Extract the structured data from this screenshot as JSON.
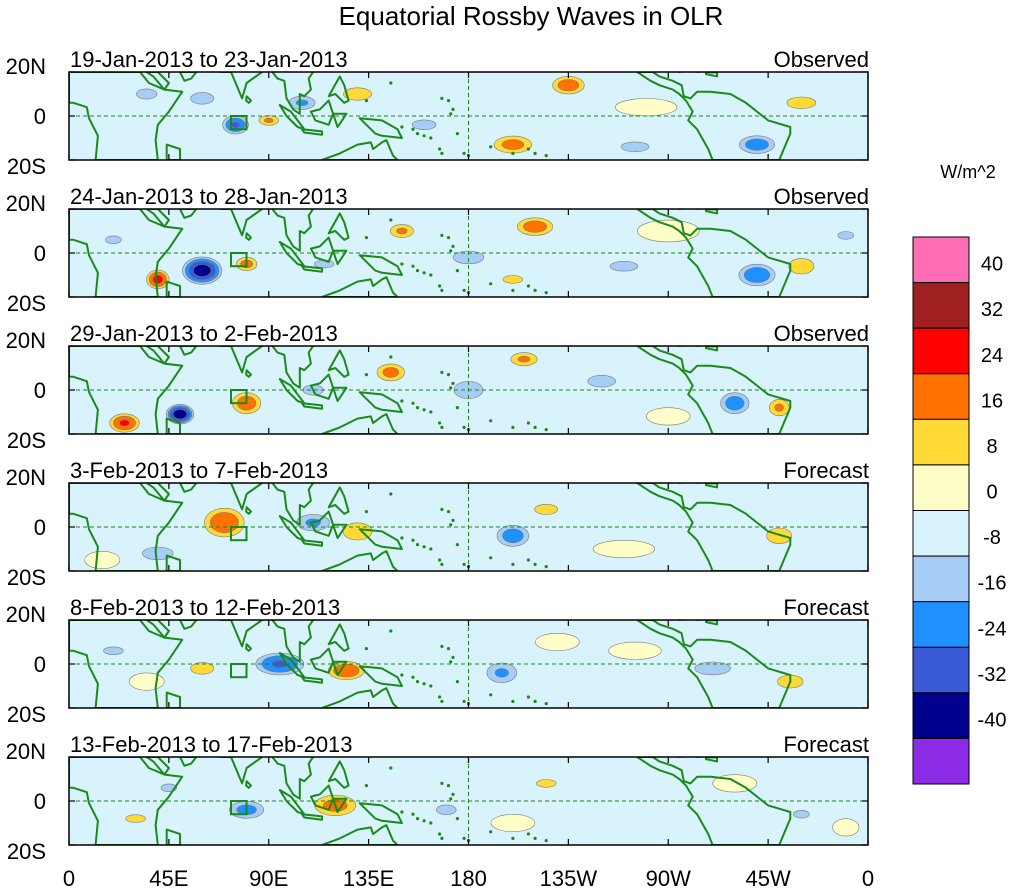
{
  "chart_data": {
    "type": "heatmap",
    "title": "Equatorial Rossby Waves in OLR",
    "colorbar_label": "W/m^2",
    "colorbar_ticks": [
      "40",
      "32",
      "24",
      "16",
      "8",
      "0",
      "-8",
      "-16",
      "-24",
      "-32",
      "-40"
    ],
    "levels": [
      -40,
      -32,
      -24,
      -16,
      -8,
      0,
      8,
      16,
      24,
      32,
      40
    ],
    "colors": [
      "#8c2be6",
      "#00008f",
      "#3b5ad8",
      "#1e90ff",
      "#a5cdf6",
      "#d8f3fb",
      "#fffdc8",
      "#ffd935",
      "#ff7200",
      "#ff0000",
      "#a02020",
      "#ff6eb4"
    ],
    "land_color": "#1a8a1a",
    "x_ticks": [
      "0",
      "45E",
      "90E",
      "135E",
      "180",
      "135W",
      "90W",
      "45W",
      "0"
    ],
    "x_tick_lon": [
      0,
      45,
      90,
      135,
      180,
      225,
      270,
      315,
      360
    ],
    "y_ticks": [
      "20N",
      "0",
      "20S"
    ],
    "y_tick_lat": [
      20,
      0,
      -20
    ],
    "lon_range": [
      0,
      360
    ],
    "lat_range": [
      -20,
      20
    ],
    "panels": [
      {
        "period": "19-Jan-2013 to 23-Jan-2013",
        "kind": "Observed",
        "blobs": [
          [
            225,
            14,
            9,
            5,
            22
          ],
          [
            200,
            -13,
            11,
            5,
            20
          ],
          [
            75,
            -4,
            7,
            5,
            -26
          ],
          [
            105,
            6,
            8,
            4,
            -18
          ],
          [
            310,
            -13,
            10,
            5,
            -22
          ],
          [
            60,
            8,
            8,
            4,
            -14
          ],
          [
            130,
            10,
            9,
            4,
            16
          ],
          [
            90,
            -2,
            6,
            3,
            18
          ],
          [
            160,
            -4,
            12,
            5,
            -10
          ],
          [
            255,
            -14,
            14,
            5,
            -10
          ],
          [
            35,
            10,
            8,
            4,
            -12
          ],
          [
            330,
            6,
            10,
            4,
            14
          ],
          [
            180,
            14,
            14,
            5,
            -8
          ],
          [
            260,
            4,
            14,
            4,
            6
          ]
        ]
      },
      {
        "period": "24-Jan-2013 to 28-Jan-2013",
        "kind": "Observed",
        "blobs": [
          [
            60,
            -8,
            10,
            7,
            -38
          ],
          [
            40,
            -12,
            6,
            5,
            28
          ],
          [
            80,
            -5,
            6,
            4,
            20
          ],
          [
            210,
            12,
            10,
            5,
            22
          ],
          [
            150,
            10,
            7,
            4,
            18
          ],
          [
            310,
            -10,
            10,
            6,
            -24
          ],
          [
            330,
            -6,
            8,
            5,
            16
          ],
          [
            180,
            -2,
            12,
            5,
            -12
          ],
          [
            250,
            -6,
            14,
            5,
            -10
          ],
          [
            115,
            -5,
            10,
            4,
            -10
          ],
          [
            270,
            10,
            14,
            5,
            8
          ],
          [
            200,
            -12,
            10,
            4,
            10
          ],
          [
            20,
            6,
            8,
            4,
            -10
          ],
          [
            350,
            8,
            8,
            4,
            -10
          ]
        ]
      },
      {
        "period": "29-Jan-2013 to 2-Feb-2013",
        "kind": "Observed",
        "blobs": [
          [
            50,
            -11,
            7,
            5,
            -40
          ],
          [
            80,
            -6,
            8,
            6,
            22
          ],
          [
            25,
            -15,
            8,
            5,
            26
          ],
          [
            145,
            8,
            8,
            5,
            20
          ],
          [
            205,
            14,
            8,
            4,
            18
          ],
          [
            300,
            -6,
            8,
            6,
            -22
          ],
          [
            320,
            -8,
            6,
            5,
            18
          ],
          [
            180,
            0,
            10,
            6,
            -14
          ],
          [
            240,
            4,
            14,
            6,
            -10
          ],
          [
            230,
            -10,
            12,
            4,
            -8
          ],
          [
            110,
            0,
            8,
            4,
            -12
          ],
          [
            340,
            -2,
            10,
            4,
            -8
          ],
          [
            270,
            -12,
            10,
            4,
            6
          ]
        ]
      },
      {
        "period": "3-Feb-2013 to 7-Feb-2013",
        "kind": "Forecast",
        "blobs": [
          [
            70,
            2,
            11,
            8,
            24
          ],
          [
            130,
            -2,
            10,
            6,
            14
          ],
          [
            110,
            2,
            10,
            5,
            -18
          ],
          [
            200,
            -4,
            9,
            6,
            -22
          ],
          [
            40,
            -12,
            12,
            5,
            -12
          ],
          [
            320,
            -4,
            8,
            5,
            16
          ],
          [
            215,
            8,
            9,
            4,
            12
          ],
          [
            160,
            6,
            10,
            4,
            -8
          ],
          [
            280,
            6,
            14,
            5,
            -6
          ],
          [
            15,
            -15,
            8,
            4,
            8
          ],
          [
            250,
            -10,
            14,
            4,
            6
          ],
          [
            350,
            4,
            10,
            4,
            -6
          ]
        ]
      },
      {
        "period": "8-Feb-2013 to 12-Feb-2013",
        "kind": "Forecast",
        "blobs": [
          [
            95,
            0,
            13,
            6,
            -26
          ],
          [
            125,
            -3,
            10,
            5,
            24
          ],
          [
            60,
            -2,
            8,
            4,
            14
          ],
          [
            195,
            -4,
            9,
            6,
            -18
          ],
          [
            290,
            -2,
            14,
            5,
            -12
          ],
          [
            325,
            -8,
            10,
            5,
            12
          ],
          [
            20,
            6,
            10,
            4,
            -10
          ],
          [
            220,
            10,
            10,
            4,
            8
          ],
          [
            160,
            6,
            10,
            4,
            -8
          ],
          [
            35,
            -8,
            8,
            4,
            8
          ],
          [
            255,
            6,
            12,
            4,
            6
          ],
          [
            345,
            8,
            8,
            4,
            -8
          ]
        ]
      },
      {
        "period": "13-Feb-2013 to 17-Feb-2013",
        "kind": "Forecast",
        "blobs": [
          [
            80,
            -4,
            10,
            5,
            -20
          ],
          [
            120,
            -2,
            12,
            6,
            20
          ],
          [
            30,
            -8,
            10,
            4,
            10
          ],
          [
            45,
            6,
            8,
            4,
            -10
          ],
          [
            170,
            -4,
            10,
            5,
            -10
          ],
          [
            215,
            8,
            10,
            4,
            10
          ],
          [
            250,
            2,
            12,
            5,
            -8
          ],
          [
            300,
            8,
            10,
            4,
            8
          ],
          [
            330,
            -6,
            8,
            4,
            -10
          ],
          [
            200,
            -10,
            10,
            4,
            6
          ],
          [
            140,
            10,
            10,
            4,
            -6
          ],
          [
            350,
            -12,
            6,
            4,
            8
          ]
        ]
      }
    ]
  }
}
